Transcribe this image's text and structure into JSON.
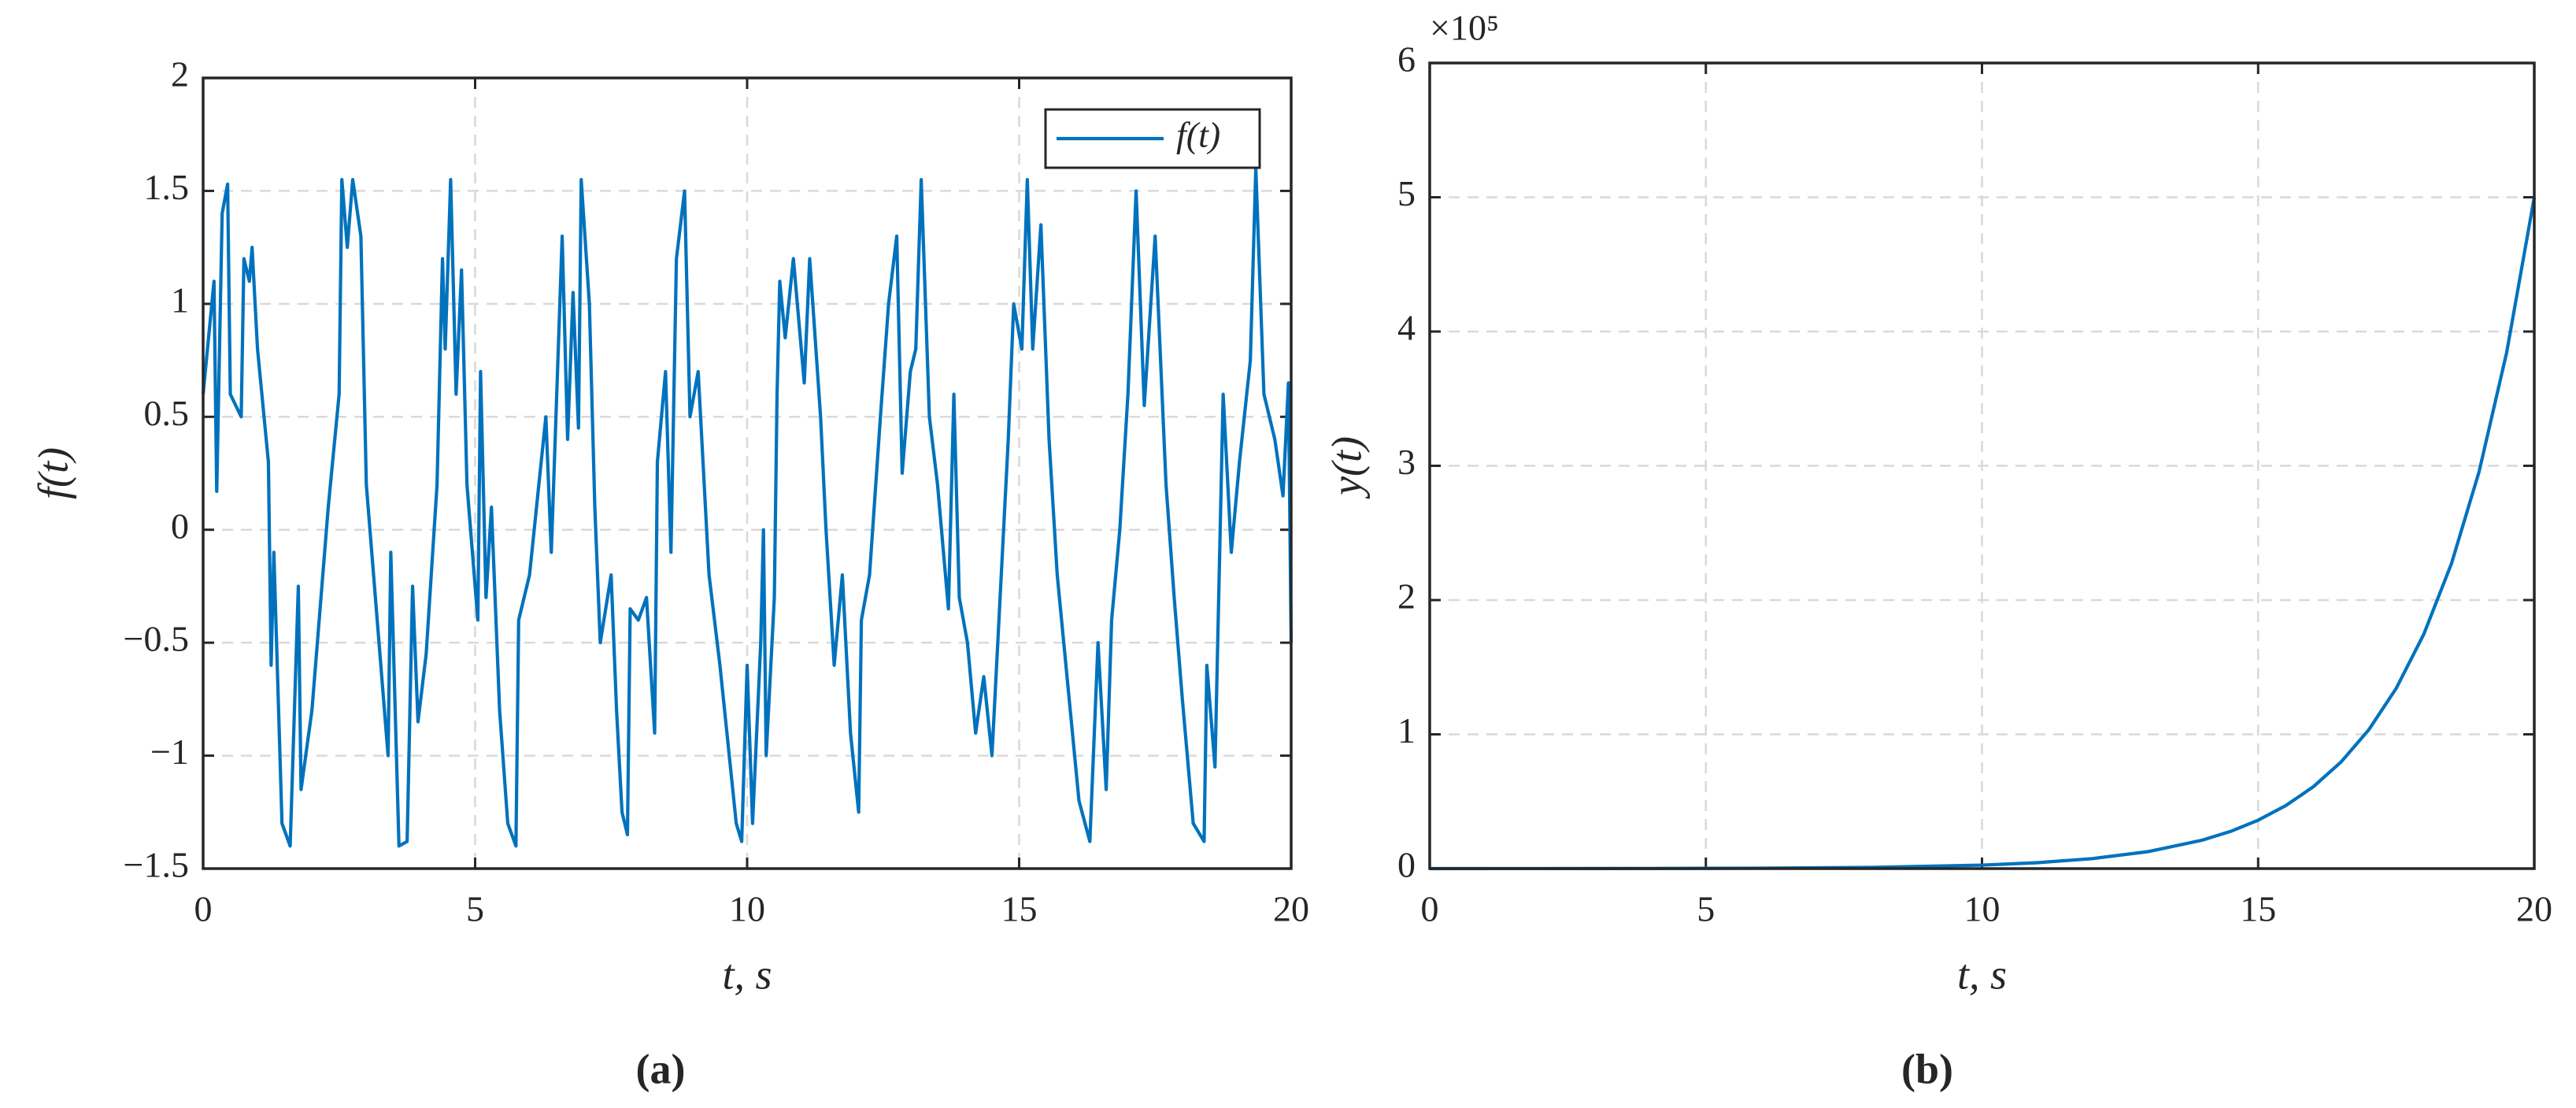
{
  "chart_data": [
    {
      "type": "line",
      "caption": "(a)",
      "xlabel": "t, s",
      "ylabel": "f(t)",
      "legend": "top-right",
      "grid": true,
      "xlim": [
        0,
        20
      ],
      "xticks": [
        0,
        5,
        10,
        15,
        20
      ],
      "ylim": [
        -1.5,
        2
      ],
      "yticks": [
        {
          "value": -1.5,
          "label": "−1.5"
        },
        {
          "value": -1,
          "label": "−1"
        },
        {
          "value": -0.5,
          "label": "−0.5"
        },
        0,
        0.5,
        1,
        1.5,
        2
      ],
      "x": [
        0,
        0.2,
        0.25,
        0.35,
        0.45,
        0.5,
        0.7,
        0.75,
        0.85,
        0.9,
        1.0,
        1.2,
        1.25,
        1.3,
        1.45,
        1.6,
        1.75,
        1.8,
        2.0,
        2.3,
        2.5,
        2.55,
        2.65,
        2.75,
        2.9,
        3.0,
        3.2,
        3.4,
        3.45,
        3.6,
        3.75,
        3.85,
        3.95,
        4.1,
        4.3,
        4.4,
        4.45,
        4.55,
        4.65,
        4.75,
        4.85,
        5.05,
        5.1,
        5.2,
        5.3,
        5.45,
        5.6,
        5.75,
        5.8,
        6.0,
        6.3,
        6.4,
        6.6,
        6.7,
        6.8,
        6.9,
        6.95,
        7.1,
        7.2,
        7.3,
        7.5,
        7.6,
        7.7,
        7.8,
        7.85,
        8.0,
        8.15,
        8.3,
        8.35,
        8.5,
        8.6,
        8.7,
        8.85,
        8.95,
        9.1,
        9.3,
        9.5,
        9.8,
        9.9,
        10.0,
        10.1,
        10.25,
        10.3,
        10.35,
        10.5,
        10.55,
        10.6,
        10.7,
        10.85,
        11.05,
        11.15,
        11.35,
        11.45,
        11.6,
        11.75,
        11.9,
        12.05,
        12.1,
        12.25,
        12.45,
        12.6,
        12.75,
        12.85,
        13.0,
        13.1,
        13.2,
        13.35,
        13.5,
        13.7,
        13.8,
        13.9,
        14.05,
        14.2,
        14.35,
        14.5,
        14.65,
        14.8,
        14.9,
        15.05,
        15.15,
        15.25,
        15.4,
        15.55,
        15.7,
        15.9,
        16.1,
        16.3,
        16.45,
        16.6,
        16.7,
        16.85,
        17.0,
        17.15,
        17.3,
        17.5,
        17.7,
        17.85,
        18.0,
        18.2,
        18.4,
        18.45,
        18.6,
        18.75,
        18.9,
        19.05,
        19.25,
        19.35,
        19.5,
        19.7,
        19.85,
        19.95,
        20.0
      ],
      "series": [
        {
          "name": "f(t)",
          "color": "#0072bd",
          "values": [
            0.6,
            1.1,
            0.17,
            1.4,
            1.53,
            0.6,
            0.5,
            1.2,
            1.1,
            1.25,
            0.8,
            0.3,
            -0.6,
            -0.1,
            -1.3,
            -1.4,
            -0.25,
            -1.15,
            -0.8,
            0.1,
            0.6,
            1.55,
            1.25,
            1.55,
            1.3,
            0.2,
            -0.4,
            -1.0,
            -0.1,
            -1.4,
            -1.38,
            -0.25,
            -0.85,
            -0.55,
            0.2,
            1.2,
            0.8,
            1.55,
            0.6,
            1.15,
            0.2,
            -0.4,
            0.7,
            -0.3,
            0.1,
            -0.8,
            -1.3,
            -1.4,
            -0.4,
            -0.2,
            0.5,
            -0.1,
            1.3,
            0.4,
            1.05,
            0.45,
            1.55,
            1.0,
            0.1,
            -0.5,
            -0.2,
            -0.8,
            -1.25,
            -1.35,
            -0.35,
            -0.4,
            -0.3,
            -0.9,
            0.3,
            0.7,
            -0.1,
            1.2,
            1.5,
            0.5,
            0.7,
            -0.2,
            -0.6,
            -1.3,
            -1.38,
            -0.6,
            -1.3,
            -0.5,
            0.0,
            -1.0,
            -0.3,
            0.6,
            1.1,
            0.85,
            1.2,
            0.65,
            1.2,
            0.5,
            0.0,
            -0.6,
            -0.2,
            -0.9,
            -1.25,
            -0.4,
            -0.2,
            0.5,
            1.0,
            1.3,
            0.25,
            0.7,
            0.8,
            1.55,
            0.5,
            0.2,
            -0.35,
            0.6,
            -0.3,
            -0.5,
            -0.9,
            -0.65,
            -1.0,
            -0.3,
            0.4,
            1.0,
            0.8,
            1.55,
            0.8,
            1.35,
            0.4,
            -0.2,
            -0.7,
            -1.2,
            -1.38,
            -0.5,
            -1.15,
            -0.4,
            0.0,
            0.6,
            1.5,
            0.55,
            1.3,
            0.2,
            -0.3,
            -0.75,
            -1.3,
            -1.38,
            -0.6,
            -1.05,
            0.6,
            -0.1,
            0.3,
            0.75,
            1.6,
            0.6,
            0.4,
            0.15,
            0.65,
            -0.5
          ]
        }
      ]
    },
    {
      "type": "line",
      "caption": "(b)",
      "xlabel": "t, s",
      "ylabel": "y(t)",
      "y_multiplier": "×10⁵",
      "grid": true,
      "xlim": [
        0,
        20
      ],
      "xticks": [
        0,
        5,
        10,
        15,
        20
      ],
      "ylim": [
        0,
        600000
      ],
      "yticks": [
        0,
        {
          "value": 100000,
          "label": "1"
        },
        {
          "value": 200000,
          "label": "2"
        },
        {
          "value": 300000,
          "label": "3"
        },
        {
          "value": 400000,
          "label": "4"
        },
        {
          "value": 500000,
          "label": "5"
        },
        {
          "value": 600000,
          "label": "6"
        }
      ],
      "x": [
        0,
        2,
        4,
        6,
        8,
        10,
        11,
        12,
        13,
        14,
        14.5,
        15,
        15.5,
        16,
        16.5,
        17,
        17.5,
        18,
        18.5,
        19,
        19.5,
        20
      ],
      "series": [
        {
          "name": "y(t)",
          "color": "#0072bd",
          "values": [
            14,
            39,
            111,
            317,
            910,
            2600,
            4395,
            7440,
            12600,
            21300,
            27700,
            36050,
            46900,
            61000,
            79350,
            103200,
            134250,
            174600,
            227150,
            295500,
            384350,
            500000
          ]
        }
      ]
    }
  ]
}
